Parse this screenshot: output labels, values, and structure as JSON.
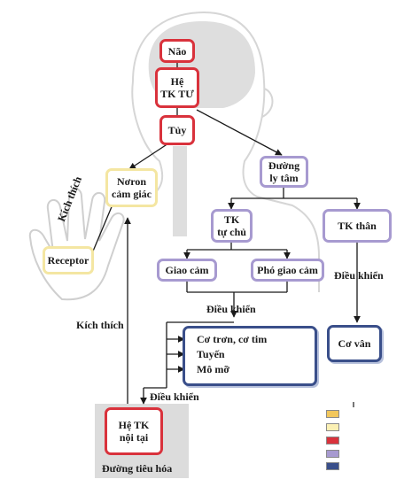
{
  "nodes": {
    "nao": "Não",
    "he_tk_tu_l1": "Hệ",
    "he_tk_tu_l2": "TK TƯ",
    "tuy": "Tủy",
    "noron_l1": "Nơron",
    "noron_l2": "cảm giác",
    "duong_ly_tam_l1": "Đường",
    "duong_ly_tam_l2": "ly tâm",
    "tk_tu_chu_l1": "TK",
    "tk_tu_chu_l2": "tự chủ",
    "tk_than": "TK thân",
    "giao_cam": "Giao cảm",
    "pho_giao_cam": "Phó giao cảm",
    "receptor": "Receptor",
    "co_tron": "Cơ trơn, cơ tim",
    "tuyen": "Tuyến",
    "mo_mo": "Mô mỡ",
    "co_van": "Cơ vân",
    "he_tk_noi_tai_l1": "Hệ TK",
    "he_tk_noi_tai_l2": "nội tại",
    "duong_tieu_hoa": "Đường tiêu hóa"
  },
  "edge_labels": {
    "kich_thich_hand": "Kích thích",
    "kich_thich_left": "Kích thích",
    "dieu_khien_autonomic": "Điều khiển",
    "dieu_khien_somatic": "Điều khiển",
    "dieu_khien_lower": "Điều khiển"
  },
  "colors": {
    "red_border": "#d9323c",
    "yellow_border": "#f4e6a2",
    "purple_border": "#a79ad0",
    "navy_border": "#3a4f8a",
    "legend": [
      "#f2c75c",
      "#fbf0b4",
      "#d9323c",
      "#a79ad0",
      "#3a4f8a"
    ]
  }
}
